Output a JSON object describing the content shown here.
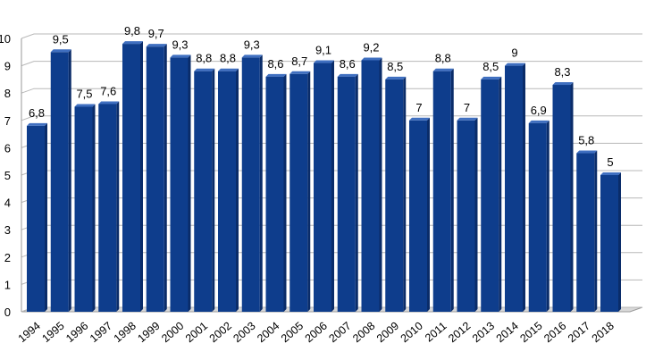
{
  "chart_data": {
    "type": "bar",
    "style": "3d",
    "categories": [
      "1994",
      "1995",
      "1996",
      "1997",
      "1998",
      "1999",
      "2000",
      "2001",
      "2002",
      "2003",
      "2004",
      "2005",
      "2006",
      "2007",
      "2008",
      "2009",
      "2010",
      "2011",
      "2012",
      "2013",
      "2014",
      "2015",
      "2016",
      "2017",
      "2018"
    ],
    "values": [
      6.8,
      9.5,
      7.5,
      7.6,
      9.8,
      9.7,
      9.3,
      8.8,
      8.8,
      9.3,
      8.6,
      8.7,
      9.1,
      8.6,
      9.2,
      8.5,
      7,
      8.8,
      7,
      8.5,
      9,
      6.9,
      8.3,
      5.8,
      5
    ],
    "value_labels": [
      "6,8",
      "9,5",
      "7,5",
      "7,6",
      "9,8",
      "9,7",
      "9,3",
      "8,8",
      "8,8",
      "9,3",
      "8,6",
      "8,7",
      "9,1",
      "8,6",
      "9,2",
      "8,5",
      "7",
      "8,8",
      "7",
      "8,5",
      "9",
      "6,9",
      "8,3",
      "5,8",
      "5"
    ],
    "y_ticks": [
      "0",
      "1",
      "2",
      "3",
      "4",
      "5",
      "6",
      "7",
      "8",
      "9",
      "10"
    ],
    "ylim": [
      0,
      10
    ],
    "grid": true,
    "legend": "none",
    "title": "",
    "xlabel": "",
    "ylabel": "",
    "colors": {
      "bar_front": "#0e3d8c",
      "bar_side": "#0a2c69",
      "bar_top": "#3f6fc0",
      "grid": "#b8b8b8",
      "text": "#000000"
    }
  }
}
